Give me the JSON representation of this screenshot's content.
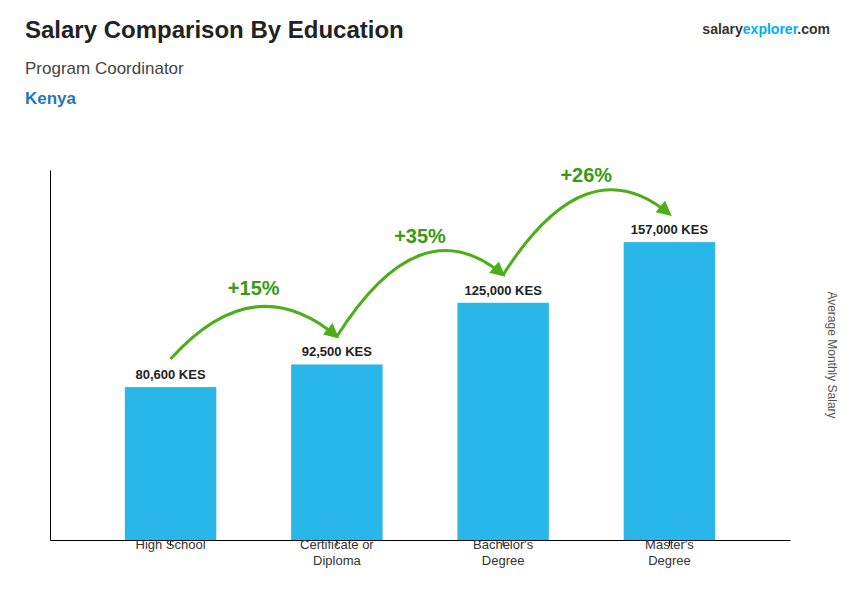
{
  "chart_data": {
    "type": "bar",
    "title": "Salary Comparison By Education",
    "subtitle": "Program Coordinator",
    "country": "Kenya",
    "watermark": [
      "salary",
      "explorer",
      ".com"
    ],
    "ylabel": "Average Monthly Salary",
    "categories": [
      "High School",
      "Certificate or\nDiploma",
      "Bachelor's\nDegree",
      "Master's\nDegree"
    ],
    "values": [
      80600,
      92500,
      125000,
      157000
    ],
    "value_labels": [
      "80,600 KES",
      "92,500 KES",
      "125,000 KES",
      "157,000 KES"
    ],
    "data_labels": true,
    "annotations": [
      "+15%",
      "+35%",
      "+26%"
    ],
    "color": "#29b6e8",
    "ylim": [
      0,
      195000
    ],
    "tick_labels": "x"
  }
}
